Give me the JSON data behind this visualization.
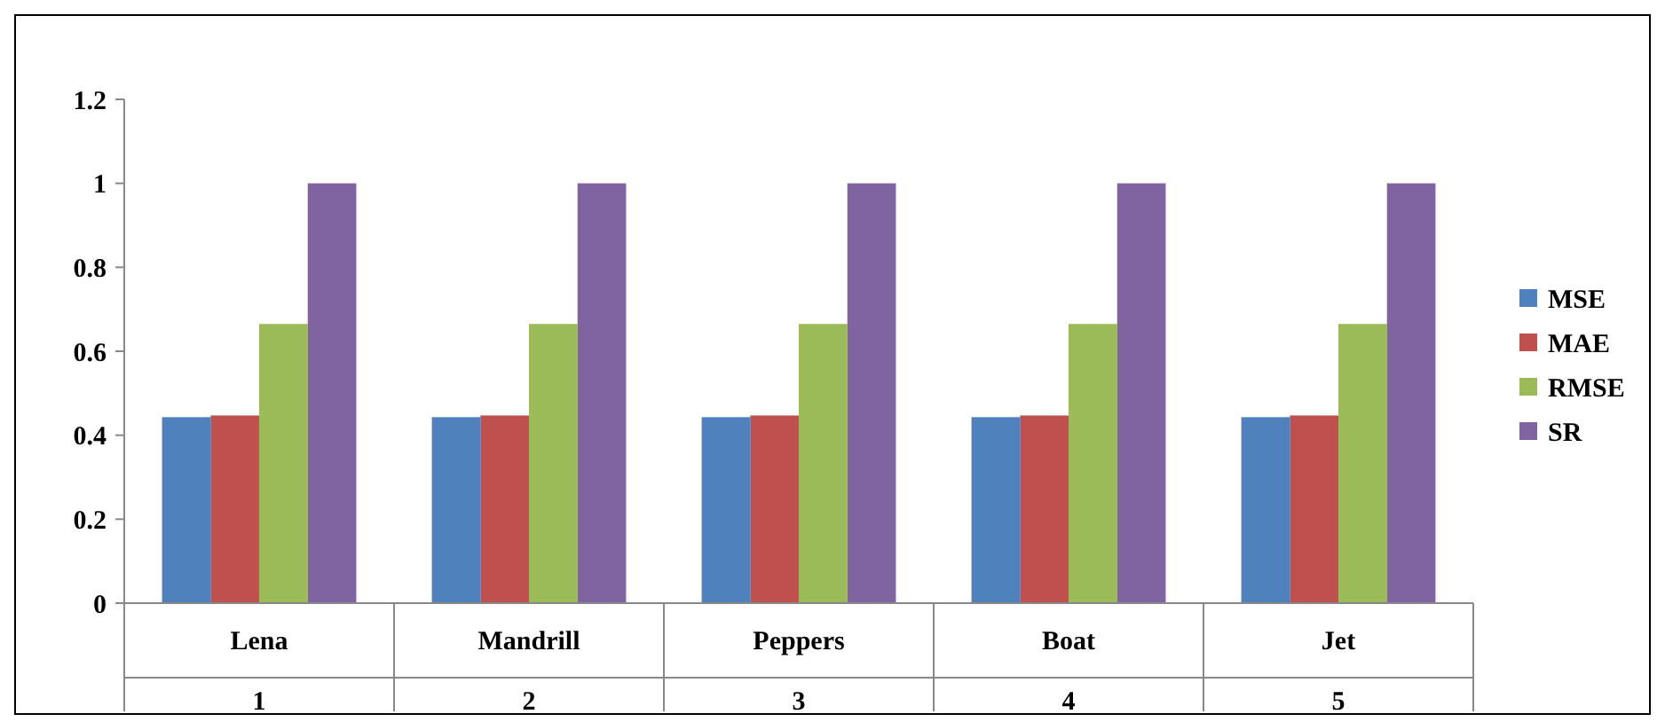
{
  "chart_data": {
    "type": "bar",
    "categories": [
      "Lena",
      "Mandrill",
      "Peppers",
      "Boat",
      "Jet"
    ],
    "series": [
      {
        "name": "MSE",
        "color": "#4f81bd",
        "values": [
          0.443,
          0.443,
          0.443,
          0.443,
          0.443
        ]
      },
      {
        "name": "MAE",
        "color": "#c0504d",
        "values": [
          0.447,
          0.447,
          0.447,
          0.447,
          0.447
        ]
      },
      {
        "name": "RMSE",
        "color": "#9bbb59",
        "values": [
          0.665,
          0.665,
          0.665,
          0.665,
          0.665
        ]
      },
      {
        "name": "SR",
        "color": "#8064a2",
        "values": [
          1,
          1,
          1,
          1,
          1
        ]
      }
    ],
    "annotations": [
      "1",
      "2",
      "3",
      "4",
      "5"
    ],
    "ylim": [
      0,
      1.2
    ],
    "yticks": [
      0,
      0.2,
      0.4,
      0.6,
      0.8,
      1,
      1.2
    ],
    "grid": false,
    "legend": "right"
  }
}
